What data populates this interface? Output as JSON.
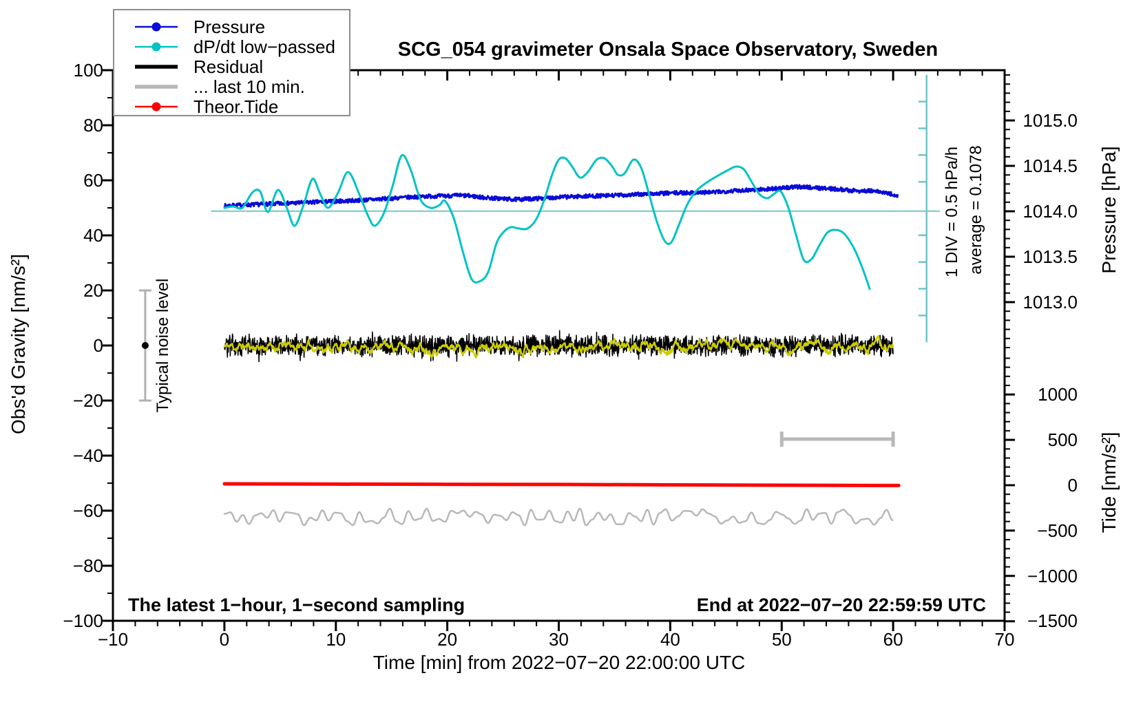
{
  "title": "SCG_054 gravimeter Onsala Space Observatory, Sweden",
  "annotations": {
    "sampling_note": "The latest 1−hour, 1−second sampling",
    "end_note": "End at 2022−07−20 22:59:59 UTC",
    "noise_label": "Typical noise level",
    "div_label": "1 DIV = 0.5 hPa/h",
    "average_label": "average = 0.1078"
  },
  "legend": {
    "items": [
      {
        "label": "Pressure",
        "color": "#0b0bd8",
        "style": "line-dot"
      },
      {
        "label": "dP/dt low−passed",
        "color": "#00c3c3",
        "style": "line-dot"
      },
      {
        "label": "Residual",
        "color": "#000000",
        "style": "thick-line"
      },
      {
        "label": "... last 10 min.",
        "color": "#b8b8b8",
        "style": "thick-line"
      },
      {
        "label": "Theor.Tide",
        "color": "#ff0000",
        "style": "line-dot"
      }
    ]
  },
  "chart_data": {
    "type": "line",
    "title": "SCG_054 gravimeter Onsala Space Observatory, Sweden",
    "grid": false,
    "x_axis": {
      "label": "Time [min] from 2022−07−20 22:00:00 UTC",
      "min": -10,
      "max": 70,
      "major_ticks": [
        -10,
        0,
        10,
        20,
        30,
        40,
        50,
        60,
        70
      ],
      "minor_step": 2,
      "decimals": 0
    },
    "left_axis": {
      "label": "Obs'd Gravity [nm/s²]",
      "min": -100,
      "max": 100,
      "major_ticks": [
        100,
        80,
        60,
        40,
        20,
        0,
        -20,
        -40,
        -60,
        -80,
        -100
      ],
      "minor_step": 10,
      "decimals": 0
    },
    "right_axis_pressure": {
      "label": "Pressure [hPa]",
      "major_ticks": [
        1015.0,
        1014.5,
        1014.0,
        1013.5,
        1013.0
      ],
      "minor_step": 0.1,
      "decimals": 1
    },
    "right_axis_tide": {
      "label": "Tide [nm/s²]",
      "major_ticks": [
        1000,
        500,
        0,
        -500,
        -1000,
        -1500
      ],
      "minor_step": 100,
      "decimals": 0
    },
    "series": [
      {
        "name": "Pressure",
        "axis": "pressure",
        "color": "#0b0bd8",
        "type": "noisy-line",
        "width": 3,
        "noise": 0.022,
        "points": [
          [
            0,
            1014.06
          ],
          [
            2,
            1014.07
          ],
          [
            4,
            1014.08
          ],
          [
            6,
            1014.09
          ],
          [
            8,
            1014.1
          ],
          [
            10,
            1014.11
          ],
          [
            12,
            1014.12
          ],
          [
            14,
            1014.135
          ],
          [
            16,
            1014.15
          ],
          [
            18,
            1014.165
          ],
          [
            20,
            1014.17
          ],
          [
            21,
            1014.175
          ],
          [
            22,
            1014.17
          ],
          [
            23,
            1014.155
          ],
          [
            24,
            1014.145
          ],
          [
            26,
            1014.13
          ],
          [
            28,
            1014.14
          ],
          [
            30,
            1014.155
          ],
          [
            32,
            1014.165
          ],
          [
            34,
            1014.17
          ],
          [
            36,
            1014.18
          ],
          [
            38,
            1014.19
          ],
          [
            40,
            1014.2
          ],
          [
            42,
            1014.205
          ],
          [
            44,
            1014.21
          ],
          [
            46,
            1014.23
          ],
          [
            48,
            1014.24
          ],
          [
            50,
            1014.255
          ],
          [
            51,
            1014.265
          ],
          [
            52,
            1014.27
          ],
          [
            53,
            1014.26
          ],
          [
            54,
            1014.25
          ],
          [
            55,
            1014.245
          ],
          [
            56,
            1014.23
          ],
          [
            57,
            1014.225
          ],
          [
            58,
            1014.225
          ],
          [
            59,
            1014.21
          ],
          [
            60,
            1014.185
          ],
          [
            60.4,
            1014.165
          ]
        ]
      },
      {
        "name": "dP/dt low−passed",
        "axis": "gravity",
        "color": "#00c3c3",
        "type": "smooth-line",
        "width": 3,
        "points": [
          [
            0,
            50
          ],
          [
            0.8,
            50.5
          ],
          [
            1.6,
            50
          ],
          [
            2.5,
            55.5
          ],
          [
            3.2,
            56
          ],
          [
            3.9,
            48.5
          ],
          [
            4.8,
            56.5
          ],
          [
            5.6,
            50
          ],
          [
            6.3,
            43.5
          ],
          [
            7.1,
            51
          ],
          [
            7.9,
            60.5
          ],
          [
            8.6,
            55
          ],
          [
            9.3,
            50
          ],
          [
            10.2,
            55.5
          ],
          [
            11.1,
            63
          ],
          [
            12.1,
            55
          ],
          [
            12.9,
            47
          ],
          [
            13.5,
            43.5
          ],
          [
            14.3,
            48
          ],
          [
            15.1,
            58
          ],
          [
            15.9,
            69
          ],
          [
            16.7,
            64
          ],
          [
            17.6,
            53
          ],
          [
            18.5,
            50
          ],
          [
            19.3,
            51
          ],
          [
            19.8,
            52.5
          ],
          [
            20.6,
            46
          ],
          [
            21.4,
            34
          ],
          [
            22.2,
            24
          ],
          [
            23,
            23.5
          ],
          [
            23.7,
            27
          ],
          [
            24.4,
            37
          ],
          [
            25,
            41
          ],
          [
            25.7,
            43
          ],
          [
            26.4,
            42.5
          ],
          [
            27.2,
            42.5
          ],
          [
            28,
            46
          ],
          [
            28.7,
            53
          ],
          [
            29.4,
            62
          ],
          [
            30,
            67.5
          ],
          [
            30.6,
            68
          ],
          [
            31.2,
            65
          ],
          [
            31.9,
            61
          ],
          [
            32.6,
            63
          ],
          [
            33.4,
            67.5
          ],
          [
            34.1,
            68
          ],
          [
            34.8,
            65
          ],
          [
            35.3,
            62
          ],
          [
            35.9,
            62.5
          ],
          [
            36.7,
            67.5
          ],
          [
            37.4,
            64.5
          ],
          [
            38.1,
            55
          ],
          [
            38.8,
            45
          ],
          [
            39.5,
            38
          ],
          [
            40.1,
            37.5
          ],
          [
            40.8,
            44
          ],
          [
            41.5,
            51
          ],
          [
            42.3,
            56
          ],
          [
            43.2,
            59
          ],
          [
            44.2,
            61.5
          ],
          [
            45.1,
            63.5
          ],
          [
            45.9,
            65
          ],
          [
            46.6,
            64
          ],
          [
            47.3,
            59.5
          ],
          [
            48,
            55
          ],
          [
            48.7,
            53.5
          ],
          [
            49.3,
            55
          ],
          [
            49.9,
            56
          ],
          [
            50.6,
            50
          ],
          [
            51.3,
            40
          ],
          [
            52,
            31
          ],
          [
            52.7,
            31.5
          ],
          [
            53.4,
            36.5
          ],
          [
            54.1,
            41
          ],
          [
            54.8,
            42
          ],
          [
            55.5,
            41
          ],
          [
            56.1,
            38
          ],
          [
            56.7,
            33.5
          ],
          [
            57.3,
            27.5
          ],
          [
            57.9,
            20.5
          ]
        ]
      },
      {
        "name": "Residual",
        "axis": "gravity",
        "color": "#000000",
        "type": "noise-band",
        "width": 1.6,
        "center": 0,
        "amplitude": 4.3,
        "t_start": 0,
        "t_end": 60
      },
      {
        "name": "Residual smoothed",
        "axis": "gravity",
        "color": "#cccc00",
        "type": "smooth-noise",
        "width": 2.5,
        "center": -0.4,
        "amplitude": 1.2,
        "t_start": 0,
        "t_end": 60
      },
      {
        "name": "Theor.Tide",
        "axis": "tide",
        "color": "#ff0000",
        "type": "line",
        "width": 5,
        "points": [
          [
            0,
            15
          ],
          [
            10,
            12
          ],
          [
            20,
            10
          ],
          [
            30,
            8
          ],
          [
            40,
            4
          ],
          [
            50,
            0
          ],
          [
            60,
            -3
          ],
          [
            60.5,
            -3
          ]
        ]
      },
      {
        "name": "... last 10 min.",
        "axis": "gravity",
        "color": "#b8b8b8",
        "type": "wiggle",
        "width": 2.5,
        "center": -62.3,
        "amplitude": 3.1,
        "segment_min": 0.55,
        "t_start": 0,
        "t_end": 60
      }
    ],
    "markers": {
      "noise_errorbar": {
        "t": -7.1,
        "from": -20,
        "to": 20,
        "dot_at": 0,
        "color": "#b0b0b0"
      },
      "last10_bar": {
        "t_from": 50,
        "t_to": 60,
        "gravity_y": -34,
        "color": "#b8b8b8"
      },
      "dpdt_ruler": {
        "t": 63.0,
        "gravity_top": 98.3,
        "gravity_bottom": 1.2,
        "divisions": 10,
        "color": "#6ec6c6"
      },
      "dpdt_refline": {
        "gravity_y": 48.8,
        "t_from": -1.2,
        "t_to": 64.2,
        "color": "#7ecaca"
      }
    }
  }
}
